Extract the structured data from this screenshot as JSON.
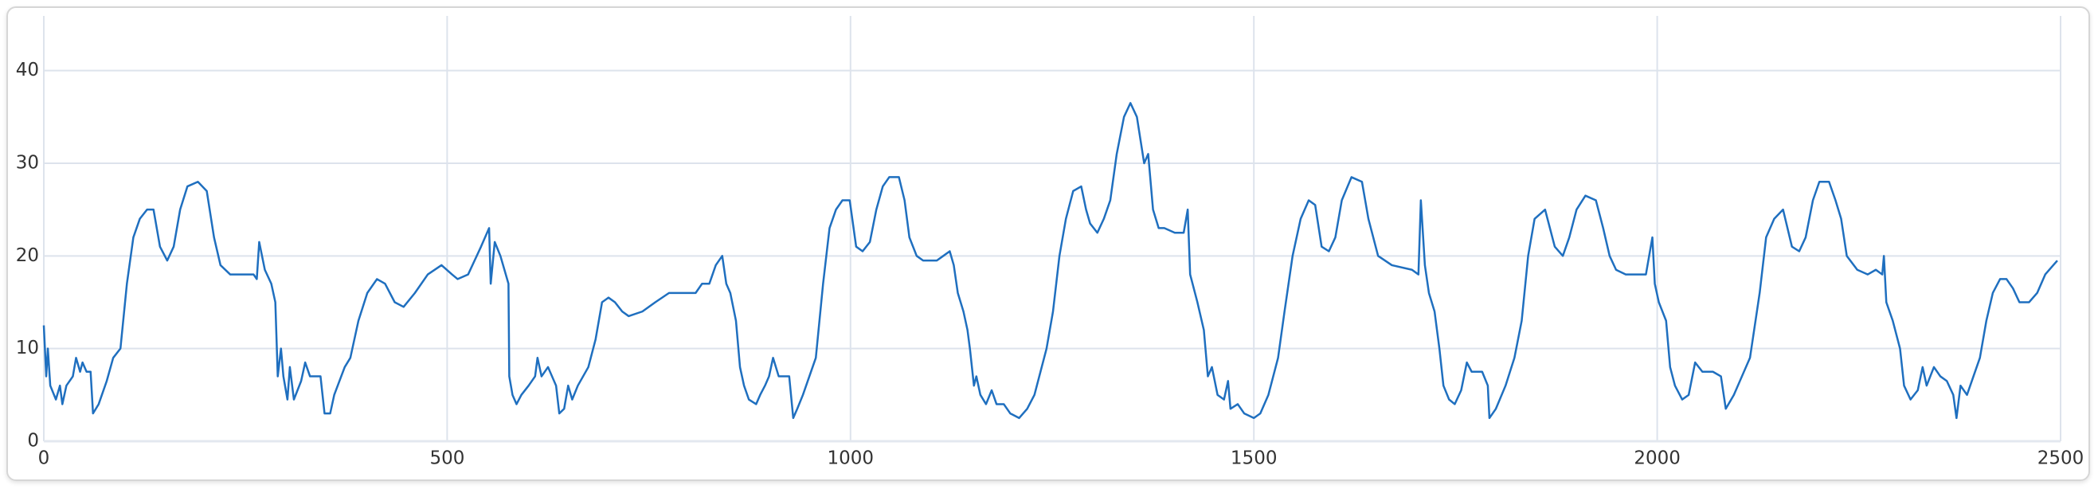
{
  "chart_data": {
    "type": "line",
    "x": [
      0,
      3,
      5,
      8,
      15,
      20,
      23,
      28,
      36,
      40,
      45,
      48,
      53,
      58,
      61,
      68,
      78,
      86,
      95,
      103,
      111,
      119,
      128,
      136,
      144,
      153,
      161,
      169,
      178,
      191,
      202,
      211,
      219,
      231,
      244,
      260,
      264,
      267,
      274,
      282,
      287,
      290,
      294,
      297,
      302,
      305,
      310,
      319,
      324,
      330,
      343,
      348,
      355,
      360,
      373,
      380,
      390,
      401,
      413,
      423,
      435,
      446,
      460,
      476,
      493,
      506,
      513,
      526,
      534,
      542,
      552,
      554,
      559,
      566,
      576,
      577,
      581,
      586,
      592,
      601,
      609,
      612,
      617,
      625,
      630,
      635,
      639,
      645,
      650,
      655,
      662,
      675,
      684,
      692,
      700,
      708,
      717,
      725,
      742,
      758,
      775,
      791,
      808,
      816,
      825,
      833,
      841,
      846,
      851,
      858,
      863,
      868,
      874,
      883,
      888,
      894,
      899,
      904,
      911,
      917,
      924,
      929,
      934,
      941,
      949,
      957,
      966,
      974,
      982,
      990,
      999,
      1007,
      1015,
      1024,
      1032,
      1040,
      1048,
      1060,
      1067,
      1073,
      1082,
      1090,
      1107,
      1115,
      1123,
      1128,
      1133,
      1140,
      1145,
      1148,
      1153,
      1156,
      1161,
      1168,
      1175,
      1181,
      1190,
      1198,
      1209,
      1219,
      1228,
      1234,
      1243,
      1251,
      1259,
      1267,
      1276,
      1286,
      1292,
      1297,
      1306,
      1314,
      1322,
      1330,
      1339,
      1347,
      1355,
      1364,
      1369,
      1375,
      1382,
      1389,
      1402,
      1413,
      1418,
      1421,
      1430,
      1438,
      1443,
      1448,
      1455,
      1463,
      1468,
      1471,
      1480,
      1488,
      1500,
      1508,
      1518,
      1530,
      1538,
      1548,
      1558,
      1568,
      1576,
      1584,
      1593,
      1601,
      1609,
      1621,
      1634,
      1642,
      1654,
      1671,
      1696,
      1704,
      1707,
      1712,
      1717,
      1724,
      1730,
      1735,
      1742,
      1749,
      1757,
      1764,
      1770,
      1783,
      1790,
      1792,
      1800,
      1812,
      1823,
      1832,
      1840,
      1848,
      1861,
      1873,
      1883,
      1891,
      1900,
      1911,
      1924,
      1933,
      1941,
      1949,
      1961,
      1986,
      1994,
      1997,
      2002,
      2011,
      2016,
      2022,
      2031,
      2039,
      2047,
      2056,
      2069,
      2079,
      2085,
      2095,
      2105,
      2115,
      2127,
      2135,
      2145,
      2156,
      2167,
      2176,
      2184,
      2193,
      2201,
      2213,
      2221,
      2228,
      2235,
      2248,
      2261,
      2271,
      2279,
      2281,
      2284,
      2292,
      2301,
      2306,
      2314,
      2323,
      2329,
      2334,
      2343,
      2351,
      2359,
      2367,
      2371,
      2376,
      2384,
      2392,
      2400,
      2408,
      2416,
      2425,
      2433,
      2441,
      2449,
      2461,
      2471,
      2481,
      2491,
      2496
    ],
    "series": [
      {
        "color": "#1f6fbf",
        "values": [
          12.5,
          7,
          10,
          6,
          4.5,
          6,
          4,
          6,
          7,
          9,
          7.5,
          8.5,
          7.5,
          7.5,
          3,
          4,
          6.5,
          9,
          10,
          17,
          22,
          24,
          25,
          25,
          21,
          19.5,
          21,
          25,
          27.5,
          28,
          27,
          22,
          19,
          18,
          18,
          18,
          17.5,
          21.5,
          18.5,
          17,
          15,
          7,
          10,
          7,
          4.5,
          8,
          4.5,
          6.5,
          8.5,
          7,
          7,
          3,
          3,
          5,
          8,
          9,
          13,
          16,
          17.5,
          17,
          15,
          14.5,
          16,
          18,
          19,
          18,
          17.5,
          18,
          19.5,
          21,
          23,
          17,
          21.5,
          20,
          17,
          7,
          5,
          4,
          5,
          6,
          7,
          9,
          7,
          8,
          7,
          6,
          3,
          3.5,
          6,
          4.5,
          6,
          8,
          11,
          15,
          15.5,
          15,
          14,
          13.5,
          14,
          15,
          16,
          16,
          16,
          17,
          17,
          19,
          20,
          17,
          16,
          13,
          8,
          6,
          4.5,
          4,
          5,
          6,
          7,
          9,
          7,
          7,
          7,
          2.5,
          3.5,
          5,
          7,
          9,
          17,
          23,
          25,
          26,
          26,
          21,
          20.5,
          21.5,
          25,
          27.5,
          28.5,
          28.5,
          26,
          22,
          20,
          19.5,
          19.5,
          20,
          20.5,
          19,
          16,
          14,
          12,
          10,
          6,
          7,
          5,
          4,
          5.5,
          4,
          4,
          3,
          2.5,
          3.5,
          5,
          7,
          10,
          14,
          20,
          24,
          27,
          27.5,
          25,
          23.5,
          22.5,
          24,
          26,
          31,
          35,
          36.5,
          35,
          30,
          31,
          25,
          23,
          23,
          22.5,
          22.5,
          25,
          18,
          15,
          12,
          7,
          8,
          5,
          4.5,
          6.5,
          3.5,
          4,
          3,
          2.5,
          3,
          5,
          9,
          14,
          20,
          24,
          26,
          25.5,
          21,
          20.5,
          22,
          26,
          28.5,
          28,
          24,
          20,
          19,
          18.5,
          18,
          26,
          19,
          16,
          14,
          10,
          6,
          4.5,
          4,
          5.5,
          8.5,
          7.5,
          7.5,
          6,
          2.5,
          3.5,
          6,
          9,
          13,
          20,
          24,
          25,
          21,
          20,
          22,
          25,
          26.5,
          26,
          23,
          20,
          18.5,
          18,
          18,
          22,
          17,
          15,
          13,
          8,
          6,
          4.5,
          5,
          8.5,
          7.5,
          7.5,
          7,
          3.5,
          5,
          7,
          9,
          16,
          22,
          24,
          25,
          21,
          20.5,
          22,
          26,
          28,
          28,
          26,
          24,
          20,
          18.5,
          18,
          18.5,
          18,
          20,
          15,
          13,
          10,
          6,
          4.5,
          5.5,
          8,
          6,
          8,
          7,
          6.5,
          5,
          2.5,
          6,
          5,
          7,
          9,
          13,
          16,
          17.5,
          17.5,
          16.5,
          15,
          15,
          16,
          18,
          19,
          19.5
        ]
      }
    ],
    "xlim": [
      0,
      2500
    ],
    "ylim": [
      0,
      45.9
    ],
    "xticks": [
      0,
      500,
      1000,
      1500,
      2000,
      2500
    ],
    "yticks": [
      0,
      10,
      20,
      30,
      40
    ],
    "grid": true
  }
}
